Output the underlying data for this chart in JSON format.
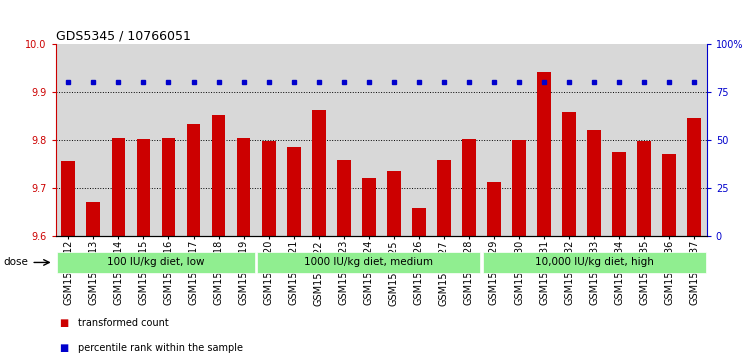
{
  "title": "GDS5345 / 10766051",
  "samples": [
    "GSM1502412",
    "GSM1502413",
    "GSM1502414",
    "GSM1502415",
    "GSM1502416",
    "GSM1502417",
    "GSM1502418",
    "GSM1502419",
    "GSM1502420",
    "GSM1502421",
    "GSM1502422",
    "GSM1502423",
    "GSM1502424",
    "GSM1502425",
    "GSM1502426",
    "GSM1502427",
    "GSM1502428",
    "GSM1502429",
    "GSM1502430",
    "GSM1502431",
    "GSM1502432",
    "GSM1502433",
    "GSM1502434",
    "GSM1502435",
    "GSM1502436",
    "GSM1502437"
  ],
  "bar_values": [
    9.755,
    9.671,
    9.803,
    9.802,
    9.803,
    9.833,
    9.851,
    9.803,
    9.798,
    9.784,
    9.862,
    9.758,
    9.72,
    9.734,
    9.659,
    9.757,
    9.801,
    9.713,
    9.8,
    9.94,
    9.857,
    9.82,
    9.775,
    9.798,
    9.77,
    9.845
  ],
  "percentile_values": [
    80,
    80,
    80,
    80,
    80,
    80,
    80,
    80,
    80,
    80,
    80,
    80,
    80,
    80,
    80,
    80,
    80,
    80,
    80,
    80,
    80,
    80,
    80,
    80,
    80,
    80
  ],
  "ylim_left": [
    9.6,
    10.0
  ],
  "ylim_right": [
    0,
    100
  ],
  "yticks_left": [
    9.6,
    9.7,
    9.8,
    9.9,
    10.0
  ],
  "yticks_right": [
    0,
    25,
    50,
    75,
    100
  ],
  "ytick_labels_right": [
    "0",
    "25",
    "50",
    "75",
    "100%"
  ],
  "bar_color": "#cc0000",
  "percentile_color": "#0000cc",
  "grid_color": "#000000",
  "bg_plot": "#d8d8d8",
  "group_boundaries": [
    0,
    8,
    17,
    26
  ],
  "groups": [
    {
      "label": "100 IU/kg diet, low",
      "color": "#90ee90"
    },
    {
      "label": "1000 IU/kg diet, medium",
      "color": "#90ee90"
    },
    {
      "label": "10,000 IU/kg diet, high",
      "color": "#90ee90"
    }
  ],
  "dose_label": "dose",
  "legend_items": [
    {
      "label": "transformed count",
      "color": "#cc0000"
    },
    {
      "label": "percentile rank within the sample",
      "color": "#0000cc"
    }
  ],
  "title_fontsize": 9,
  "tick_fontsize": 7,
  "label_fontsize": 7.5,
  "group_fontsize": 7.5
}
